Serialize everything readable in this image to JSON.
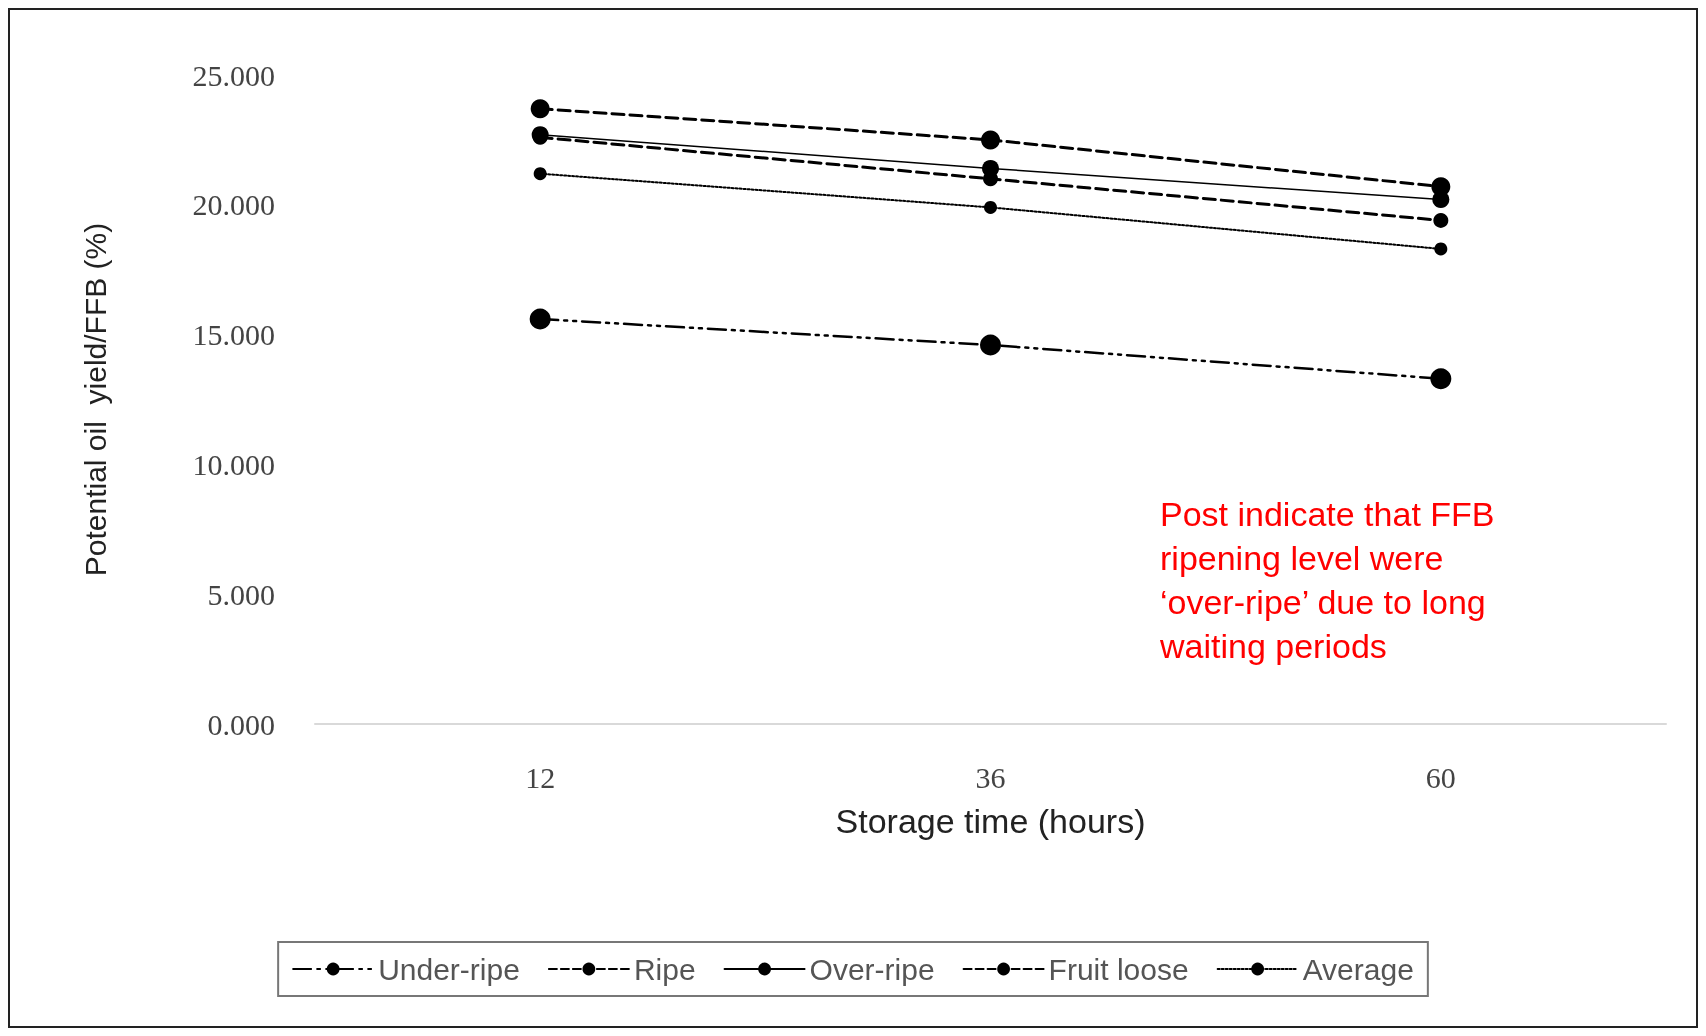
{
  "chart_data": {
    "type": "line",
    "xlabel": "Storage time (hours)",
    "ylabel": "Potential oil  yield/FFB (%)",
    "categories": [
      "12",
      "36",
      "60"
    ],
    "series": [
      {
        "name": "Under-ripe",
        "color": "#000000",
        "line_style": "dashdot",
        "values": [
          15.6,
          14.6,
          13.3
        ]
      },
      {
        "name": "Ripe",
        "color": "#000000",
        "line_style": "dashed",
        "values": [
          23.7,
          22.5,
          20.7
        ]
      },
      {
        "name": "Over-ripe",
        "color": "#000000",
        "line_style": "solid",
        "values": [
          22.7,
          21.4,
          20.2
        ]
      },
      {
        "name": "Fruit loose",
        "color": "#000000",
        "line_style": "dashed",
        "values": [
          22.6,
          21.0,
          19.4
        ]
      },
      {
        "name": "Average",
        "color": "#000000",
        "line_style": "dotted",
        "values": [
          21.2,
          19.9,
          18.3
        ]
      }
    ],
    "ylim": [
      0,
      25
    ],
    "yticks": [
      {
        "value": 0,
        "label": "0.000"
      },
      {
        "value": 5,
        "label": "5.000"
      },
      {
        "value": 10,
        "label": "10.000"
      },
      {
        "value": 15,
        "label": "15.000"
      },
      {
        "value": 20,
        "label": "20.000"
      },
      {
        "value": 25,
        "label": "25.000"
      }
    ],
    "grid": false,
    "legend": "bottom",
    "marker": "circle",
    "annotations": [
      "Post indicate that FFB\nripening level were\n‘over-ripe’ due to long\nwaiting periods"
    ]
  }
}
